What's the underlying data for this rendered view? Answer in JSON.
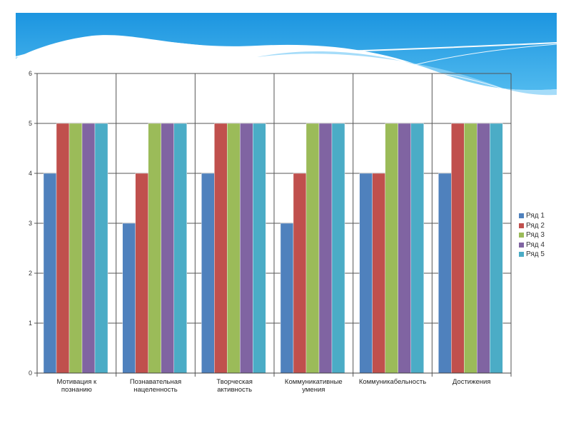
{
  "chart_data": {
    "type": "bar",
    "title": "",
    "xlabel": "",
    "ylabel": "",
    "ylim": [
      0,
      6
    ],
    "yticks": [
      "0",
      "1",
      "2",
      "3",
      "4",
      "5",
      "6"
    ],
    "grid": true,
    "legend_position": "right",
    "categories": [
      [
        "Мотивация к",
        "познанию"
      ],
      [
        "Познавательная",
        "нацеленность"
      ],
      [
        "Творческая",
        "активность"
      ],
      [
        "Коммуникативные",
        "умения"
      ],
      [
        "Коммуникабельность"
      ],
      [
        "Достижения"
      ]
    ],
    "series": [
      {
        "name": "Ряд 1",
        "color": "#4F81BD",
        "values": [
          4,
          3,
          4,
          3,
          4,
          4
        ]
      },
      {
        "name": "Ряд 2",
        "color": "#C0504D",
        "values": [
          5,
          4,
          5,
          4,
          4,
          5
        ]
      },
      {
        "name": "Ряд 3",
        "color": "#9BBB59",
        "values": [
          5,
          5,
          5,
          5,
          5,
          5
        ]
      },
      {
        "name": "Ряд 4",
        "color": "#8064A2",
        "values": [
          5,
          5,
          5,
          5,
          5,
          5
        ]
      },
      {
        "name": "Ряд 5",
        "color": "#4BACC6",
        "values": [
          5,
          5,
          5,
          5,
          5,
          5
        ]
      }
    ]
  }
}
